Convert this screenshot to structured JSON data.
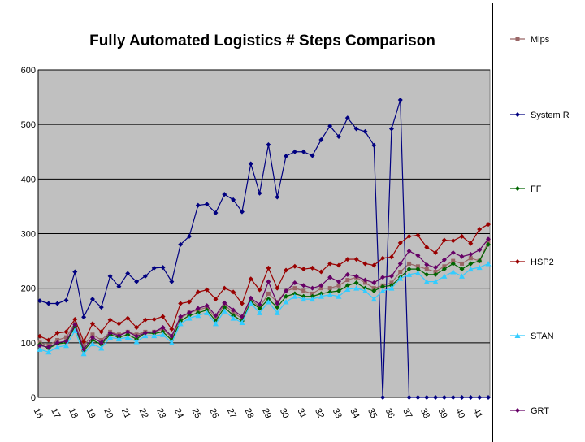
{
  "chart_data": {
    "type": "line",
    "title": "Fully Automated Logistics # Steps Comparison",
    "xlabel": "",
    "ylabel": "",
    "ylim": [
      0,
      600
    ],
    "yticks": [
      0,
      100,
      200,
      300,
      400,
      500,
      600
    ],
    "grid": "horizontal",
    "legend_position": "right",
    "plot_background": "#c0c0c0",
    "categories": [
      "16",
      "",
      "17",
      "",
      "18",
      "",
      "19",
      "",
      "20",
      "",
      "21",
      "",
      "22",
      "",
      "23",
      "",
      "24",
      "",
      "25",
      "",
      "26",
      "",
      "27",
      "",
      "28",
      "",
      "29",
      "",
      "30",
      "",
      "31",
      "",
      "32",
      "",
      "33",
      "",
      "34",
      "",
      "35",
      "",
      "36",
      "",
      "37",
      "",
      "38",
      "",
      "39",
      "",
      "40",
      "",
      "41",
      ""
    ],
    "tick_labels": [
      "16",
      "17",
      "18",
      "19",
      "20",
      "21",
      "22",
      "23",
      "24",
      "25",
      "26",
      "27",
      "28",
      "29",
      "30",
      "31",
      "32",
      "33",
      "34",
      "35",
      "36",
      "37",
      "38",
      "39",
      "40",
      "41"
    ],
    "series": [
      {
        "name": "Mips",
        "color": "#996666",
        "marker": "square",
        "values": [
          100,
          95,
          105,
          110,
          135,
          95,
          115,
          105,
          120,
          115,
          120,
          115,
          120,
          120,
          125,
          110,
          145,
          155,
          160,
          165,
          145,
          170,
          155,
          145,
          180,
          165,
          190,
          175,
          195,
          200,
          195,
          190,
          200,
          200,
          205,
          215,
          220,
          210,
          200,
          205,
          210,
          230,
          245,
          240,
          235,
          230,
          240,
          250,
          245,
          255,
          250,
          285
        ]
      },
      {
        "name": "System R",
        "color": "#000080",
        "marker": "diamond",
        "values": [
          177,
          172,
          172,
          178,
          230,
          147,
          180,
          165,
          222,
          203,
          227,
          212,
          222,
          237,
          238,
          212,
          280,
          295,
          352,
          354,
          338,
          372,
          362,
          340,
          428,
          374,
          463,
          367,
          442,
          450,
          450,
          443,
          472,
          497,
          478,
          512,
          492,
          487,
          462,
          0,
          492,
          545,
          0,
          0,
          0,
          0,
          0,
          0,
          0,
          0,
          0,
          0
        ]
      },
      {
        "name": "FF",
        "color": "#006600",
        "marker": "diamond",
        "values": [
          97,
          90,
          98,
          100,
          130,
          85,
          105,
          97,
          115,
          110,
          115,
          107,
          118,
          117,
          120,
          105,
          140,
          150,
          155,
          160,
          140,
          165,
          150,
          140,
          175,
          163,
          180,
          165,
          185,
          190,
          185,
          185,
          190,
          193,
          195,
          205,
          210,
          200,
          195,
          203,
          205,
          220,
          235,
          235,
          225,
          225,
          235,
          245,
          235,
          245,
          250,
          280
        ]
      },
      {
        "name": "HSP2",
        "color": "#990000",
        "marker": "diamond",
        "values": [
          112,
          105,
          118,
          120,
          143,
          102,
          135,
          120,
          142,
          135,
          145,
          128,
          142,
          143,
          148,
          125,
          172,
          175,
          193,
          197,
          180,
          200,
          193,
          172,
          217,
          197,
          237,
          200,
          233,
          240,
          235,
          237,
          230,
          245,
          242,
          253,
          253,
          245,
          242,
          255,
          257,
          283,
          295,
          297,
          275,
          265,
          288,
          287,
          295,
          282,
          308,
          317
        ]
      },
      {
        "name": "STAN",
        "color": "#33ccff",
        "marker": "triangle",
        "values": [
          88,
          83,
          92,
          95,
          122,
          80,
          98,
          90,
          110,
          107,
          110,
          102,
          113,
          113,
          115,
          100,
          135,
          145,
          150,
          155,
          135,
          158,
          145,
          137,
          172,
          155,
          175,
          155,
          175,
          185,
          180,
          180,
          185,
          188,
          185,
          198,
          200,
          195,
          180,
          195,
          200,
          218,
          225,
          228,
          212,
          212,
          222,
          230,
          222,
          235,
          238,
          245
        ]
      },
      {
        "name": "GRT",
        "color": "#660066",
        "marker": "diamond",
        "values": [
          95,
          92,
          100,
          103,
          133,
          88,
          110,
          100,
          118,
          113,
          120,
          112,
          118,
          120,
          128,
          112,
          148,
          155,
          163,
          168,
          150,
          173,
          160,
          148,
          182,
          170,
          212,
          172,
          195,
          210,
          205,
          200,
          205,
          220,
          212,
          225,
          222,
          215,
          210,
          220,
          222,
          245,
          268,
          260,
          243,
          238,
          252,
          265,
          258,
          262,
          270,
          290
        ]
      }
    ]
  }
}
